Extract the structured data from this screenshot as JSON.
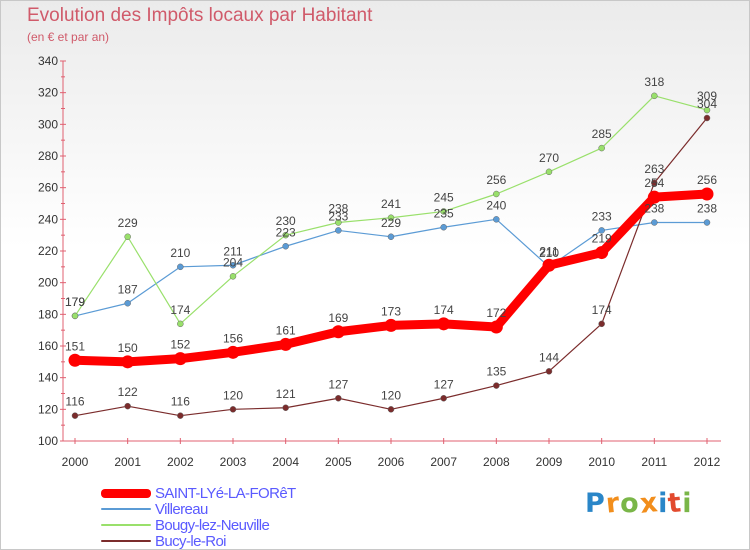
{
  "title": "Evolution des Impôts locaux par Habitant",
  "subtitle": "(en € et par an)",
  "logo_text": "Proxiti",
  "logo_colors": [
    "#2a86c8",
    "#f28e1c",
    "#7ab648",
    "#f28e1c",
    "#2a86c8",
    "#e24a2e",
    "#7ab648"
  ],
  "chart_data": {
    "type": "line",
    "x": [
      "2000",
      "2001",
      "2002",
      "2003",
      "2004",
      "2005",
      "2006",
      "2007",
      "2008",
      "2009",
      "2010",
      "2011",
      "2012"
    ],
    "ylim": [
      100,
      340
    ],
    "y_ticks": [
      "100",
      "120",
      "140",
      "160",
      "180",
      "200",
      "220",
      "240",
      "260",
      "280",
      "300",
      "320",
      "340"
    ],
    "grid": false,
    "legend_position": "bottom-left",
    "series": [
      {
        "name": "SAINT-LYé-LA-FORêT",
        "color": "#ff0000",
        "emphasis": true,
        "values": [
          151,
          150,
          152,
          156,
          161,
          169,
          173,
          174,
          172,
          211,
          219,
          254,
          256
        ]
      },
      {
        "name": "Villereau",
        "color": "#5b9bd5",
        "values": [
          179,
          187,
          210,
          211,
          223,
          233,
          229,
          235,
          240,
          210,
          233,
          238,
          238
        ]
      },
      {
        "name": "Bougy-lez-Neuville",
        "color": "#99e06b",
        "values": [
          179,
          229,
          174,
          204,
          230,
          238,
          241,
          245,
          256,
          270,
          285,
          318,
          309
        ]
      },
      {
        "name": "Bucy-le-Roi",
        "color": "#7b2c2c",
        "values": [
          116,
          122,
          116,
          120,
          121,
          127,
          120,
          127,
          135,
          144,
          174,
          263,
          304
        ]
      }
    ]
  }
}
